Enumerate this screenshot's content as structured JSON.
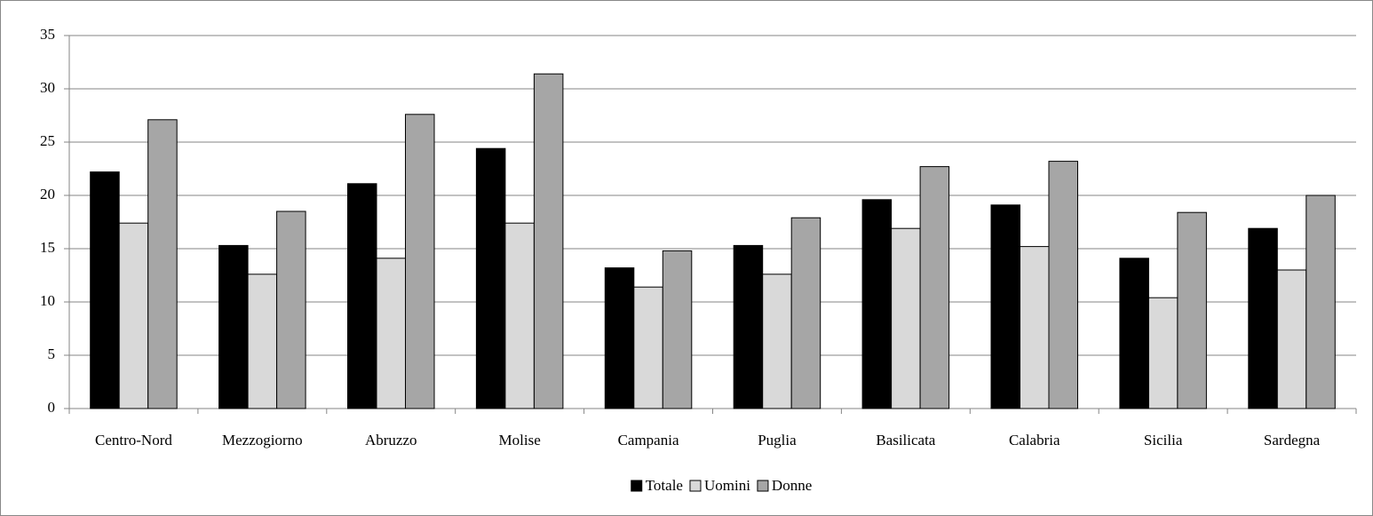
{
  "chart_data": {
    "type": "bar",
    "categories": [
      "Centro-Nord",
      "Mezzogiorno",
      "Abruzzo",
      "Molise",
      "Campania",
      "Puglia",
      "Basilicata",
      "Calabria",
      "Sicilia",
      "Sardegna"
    ],
    "series": [
      {
        "name": "Totale",
        "color": "#000000",
        "values": [
          22.2,
          15.3,
          21.1,
          24.4,
          13.2,
          15.3,
          19.6,
          19.1,
          14.1,
          16.9
        ]
      },
      {
        "name": "Uomini",
        "color": "#d9d9d9",
        "values": [
          17.4,
          12.6,
          14.1,
          17.4,
          11.4,
          12.6,
          16.9,
          15.2,
          10.4,
          13.0
        ]
      },
      {
        "name": "Donne",
        "color": "#a6a6a6",
        "values": [
          27.1,
          18.5,
          27.6,
          31.4,
          14.8,
          17.9,
          22.7,
          23.2,
          18.4,
          20.0
        ]
      }
    ],
    "ylim": [
      0,
      35
    ],
    "yticks": [
      0,
      5,
      10,
      15,
      20,
      25,
      30,
      35
    ],
    "grid": true,
    "legend": "bottom"
  }
}
